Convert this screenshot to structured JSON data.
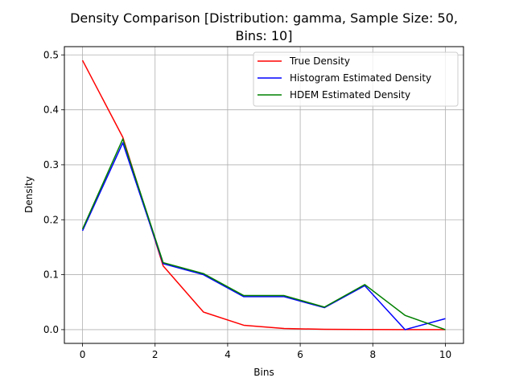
{
  "chart_data": {
    "type": "line",
    "title_line1": "Density Comparison [Distribution: gamma, Sample Size: 50,",
    "title_line2": "Bins: 10]",
    "xlabel": "Bins",
    "ylabel": "Density",
    "xlim": [
      -0.5,
      10.5
    ],
    "ylim": [
      -0.025,
      0.515
    ],
    "xticks": [
      0,
      2,
      4,
      6,
      8,
      10
    ],
    "yticks": [
      0.0,
      0.1,
      0.2,
      0.3,
      0.4,
      0.5
    ],
    "ytick_labels": [
      "0.0",
      "0.1",
      "0.2",
      "0.3",
      "0.4",
      "0.5"
    ],
    "grid": true,
    "legend_position": "upper right",
    "x": [
      0,
      1.111,
      2.222,
      3.333,
      4.444,
      5.556,
      6.667,
      7.778,
      8.889,
      10
    ],
    "series": [
      {
        "name": "True Density",
        "color": "#ff0000",
        "values": [
          0.49,
          0.35,
          0.116,
          0.032,
          0.008,
          0.002,
          0.0007,
          0.0002,
          0.0001,
          2e-05
        ]
      },
      {
        "name": "Histogram Estimated Density",
        "color": "#0000ff",
        "values": [
          0.18,
          0.34,
          0.12,
          0.1,
          0.06,
          0.06,
          0.04,
          0.08,
          0.0,
          0.02
        ]
      },
      {
        "name": "HDEM Estimated Density",
        "color": "#008000",
        "values": [
          0.183,
          0.347,
          0.122,
          0.102,
          0.062,
          0.062,
          0.041,
          0.082,
          0.026,
          0.0
        ]
      }
    ]
  }
}
